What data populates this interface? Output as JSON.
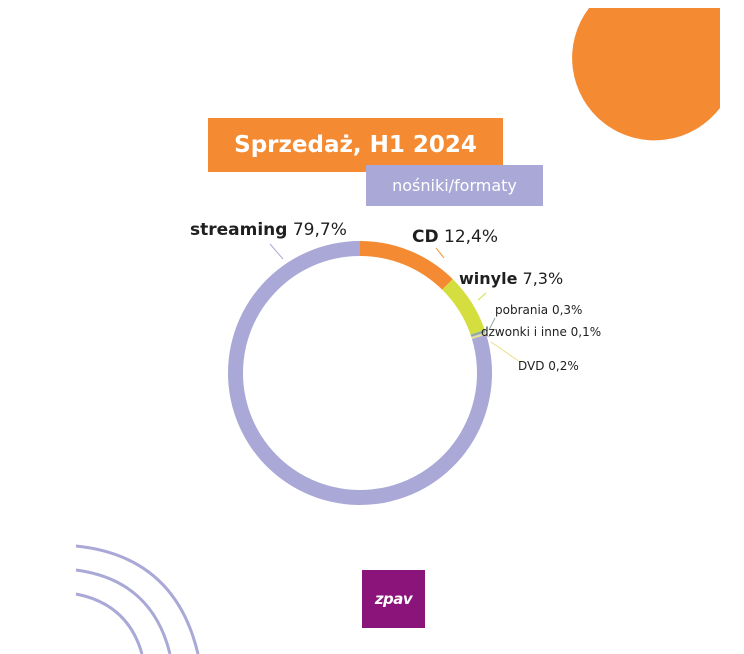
{
  "chart_data": {
    "type": "pie",
    "title": "Sprzedaż, H1 2024",
    "subtitle": "nośniki/formaty",
    "slices": [
      {
        "name": "CD",
        "value": 12.4,
        "value_label": "12,4%",
        "color": "#F48B33",
        "bold": true
      },
      {
        "name": "winyle",
        "value": 7.3,
        "value_label": "7,3%",
        "color": "#D4DE3F",
        "bold": true
      },
      {
        "name": "pobrania",
        "value": 0.3,
        "value_label": "0,3%",
        "color": "#8FA8A4",
        "bold": false
      },
      {
        "name": "dzwonki i inne",
        "value": 0.1,
        "value_label": "0,1%",
        "color": "#C7C7C7",
        "bold": false
      },
      {
        "name": "DVD",
        "value": 0.2,
        "value_label": "0,2%",
        "color": "#E8E08A",
        "bold": false
      },
      {
        "name": "streaming",
        "value": 79.7,
        "value_label": "79,7%",
        "color": "#A9A8D6",
        "bold": true
      }
    ]
  },
  "logo": {
    "text": "zpav"
  },
  "colors": {
    "orange": "#F48B33",
    "lavender": "#A9A8D6",
    "logo_purple": "#8A147A"
  }
}
